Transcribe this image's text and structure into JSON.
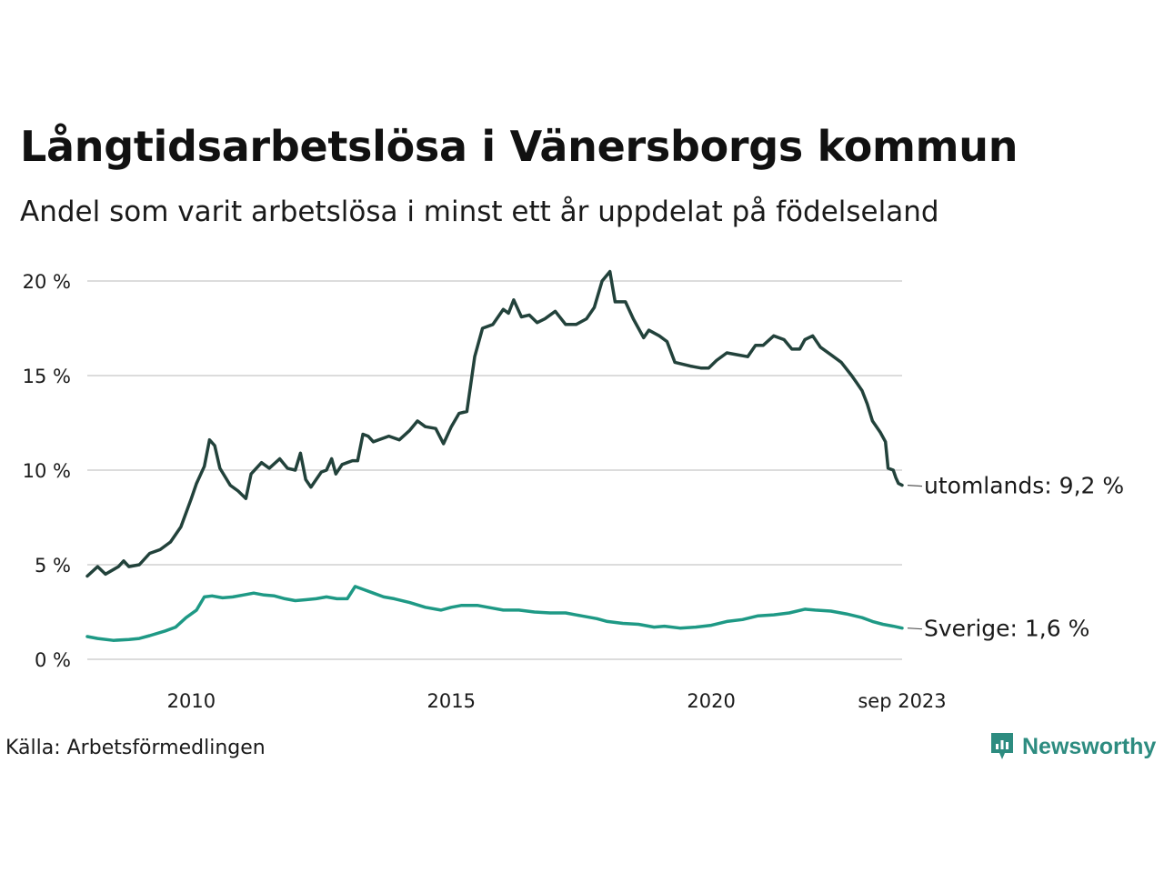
{
  "title": "Långtidsarbetslösa i Vänersborgs kommun",
  "subtitle": "Andel som varit arbetslösa i minst ett år uppdelat på födelseland",
  "source": "Källa: Arbetsförmedlingen",
  "brand": "Newsworthy",
  "colors": {
    "utomlands": "#22423b",
    "sverige": "#1e9985",
    "grid": "#dcdcdc",
    "brand": "#2d8c80"
  },
  "chart_data": {
    "type": "line",
    "title": "Långtidsarbetslösa i Vänersborgs kommun",
    "xlabel": "",
    "ylabel": "",
    "ylim": [
      0,
      20
    ],
    "xlim": [
      2008.0,
      2023.67
    ],
    "y_ticks": [
      0,
      5,
      10,
      15,
      20
    ],
    "y_tick_labels": [
      "0 %",
      "5 %",
      "10 %",
      "15 %",
      "20 %"
    ],
    "x_ticks": [
      2010,
      2015,
      2020,
      2023.67
    ],
    "x_tick_labels": [
      "2010",
      "2015",
      "2020",
      "sep 2023"
    ],
    "grid": true,
    "series": [
      {
        "name": "utomlands",
        "end_label": "utomlands: 9,2 %",
        "points": [
          [
            2008.0,
            4.4
          ],
          [
            2008.2,
            4.9
          ],
          [
            2008.35,
            4.5
          ],
          [
            2008.6,
            4.9
          ],
          [
            2008.7,
            5.2
          ],
          [
            2008.8,
            4.9
          ],
          [
            2009.0,
            5.0
          ],
          [
            2009.2,
            5.6
          ],
          [
            2009.4,
            5.8
          ],
          [
            2009.6,
            6.2
          ],
          [
            2009.8,
            7.0
          ],
          [
            2010.0,
            8.5
          ],
          [
            2010.1,
            9.3
          ],
          [
            2010.25,
            10.2
          ],
          [
            2010.35,
            11.6
          ],
          [
            2010.45,
            11.3
          ],
          [
            2010.55,
            10.1
          ],
          [
            2010.75,
            9.2
          ],
          [
            2010.9,
            8.9
          ],
          [
            2011.05,
            8.5
          ],
          [
            2011.15,
            9.8
          ],
          [
            2011.35,
            10.4
          ],
          [
            2011.5,
            10.1
          ],
          [
            2011.7,
            10.6
          ],
          [
            2011.85,
            10.1
          ],
          [
            2012.0,
            10.0
          ],
          [
            2012.1,
            10.9
          ],
          [
            2012.2,
            9.5
          ],
          [
            2012.3,
            9.1
          ],
          [
            2012.5,
            9.9
          ],
          [
            2012.6,
            10.0
          ],
          [
            2012.7,
            10.6
          ],
          [
            2012.78,
            9.8
          ],
          [
            2012.9,
            10.3
          ],
          [
            2013.1,
            10.5
          ],
          [
            2013.2,
            10.5
          ],
          [
            2013.3,
            11.9
          ],
          [
            2013.4,
            11.8
          ],
          [
            2013.5,
            11.5
          ],
          [
            2013.8,
            11.8
          ],
          [
            2014.0,
            11.6
          ],
          [
            2014.2,
            12.1
          ],
          [
            2014.35,
            12.6
          ],
          [
            2014.5,
            12.3
          ],
          [
            2014.7,
            12.2
          ],
          [
            2014.85,
            11.4
          ],
          [
            2015.0,
            12.3
          ],
          [
            2015.15,
            13.0
          ],
          [
            2015.3,
            13.1
          ],
          [
            2015.45,
            16.0
          ],
          [
            2015.6,
            17.5
          ],
          [
            2015.8,
            17.7
          ],
          [
            2016.0,
            18.5
          ],
          [
            2016.1,
            18.3
          ],
          [
            2016.2,
            19.0
          ],
          [
            2016.35,
            18.1
          ],
          [
            2016.5,
            18.2
          ],
          [
            2016.65,
            17.8
          ],
          [
            2016.8,
            18.0
          ],
          [
            2017.0,
            18.4
          ],
          [
            2017.2,
            17.7
          ],
          [
            2017.4,
            17.7
          ],
          [
            2017.6,
            18.0
          ],
          [
            2017.75,
            18.6
          ],
          [
            2017.9,
            20.0
          ],
          [
            2018.05,
            20.5
          ],
          [
            2018.15,
            18.9
          ],
          [
            2018.35,
            18.9
          ],
          [
            2018.5,
            18.0
          ],
          [
            2018.7,
            17.0
          ],
          [
            2018.8,
            17.4
          ],
          [
            2019.0,
            17.1
          ],
          [
            2019.15,
            16.8
          ],
          [
            2019.3,
            15.7
          ],
          [
            2019.6,
            15.5
          ],
          [
            2019.8,
            15.4
          ],
          [
            2019.95,
            15.4
          ],
          [
            2020.1,
            15.8
          ],
          [
            2020.3,
            16.2
          ],
          [
            2020.5,
            16.1
          ],
          [
            2020.7,
            16.0
          ],
          [
            2020.85,
            16.6
          ],
          [
            2021.0,
            16.6
          ],
          [
            2021.2,
            17.1
          ],
          [
            2021.4,
            16.9
          ],
          [
            2021.55,
            16.4
          ],
          [
            2021.7,
            16.4
          ],
          [
            2021.8,
            16.9
          ],
          [
            2021.95,
            17.1
          ],
          [
            2022.1,
            16.5
          ],
          [
            2022.3,
            16.1
          ],
          [
            2022.5,
            15.7
          ],
          [
            2022.7,
            15.0
          ],
          [
            2022.8,
            14.6
          ],
          [
            2022.9,
            14.2
          ],
          [
            2023.0,
            13.5
          ],
          [
            2023.1,
            12.6
          ],
          [
            2023.25,
            12.0
          ],
          [
            2023.35,
            11.5
          ],
          [
            2023.4,
            10.1
          ],
          [
            2023.5,
            10.0
          ],
          [
            2023.55,
            9.6
          ],
          [
            2023.6,
            9.3
          ],
          [
            2023.67,
            9.2
          ]
        ]
      },
      {
        "name": "Sverige",
        "end_label": "Sverige: 1,6 %",
        "points": [
          [
            2008.0,
            1.2
          ],
          [
            2008.2,
            1.1
          ],
          [
            2008.5,
            1.0
          ],
          [
            2008.8,
            1.05
          ],
          [
            2009.0,
            1.1
          ],
          [
            2009.2,
            1.25
          ],
          [
            2009.5,
            1.5
          ],
          [
            2009.7,
            1.7
          ],
          [
            2009.9,
            2.2
          ],
          [
            2010.1,
            2.6
          ],
          [
            2010.25,
            3.3
          ],
          [
            2010.4,
            3.35
          ],
          [
            2010.6,
            3.25
          ],
          [
            2010.8,
            3.3
          ],
          [
            2011.0,
            3.4
          ],
          [
            2011.2,
            3.5
          ],
          [
            2011.4,
            3.4
          ],
          [
            2011.6,
            3.35
          ],
          [
            2011.8,
            3.2
          ],
          [
            2012.0,
            3.1
          ],
          [
            2012.2,
            3.15
          ],
          [
            2012.4,
            3.2
          ],
          [
            2012.6,
            3.3
          ],
          [
            2012.8,
            3.2
          ],
          [
            2013.0,
            3.2
          ],
          [
            2013.15,
            3.85
          ],
          [
            2013.3,
            3.7
          ],
          [
            2013.5,
            3.5
          ],
          [
            2013.7,
            3.3
          ],
          [
            2013.9,
            3.2
          ],
          [
            2014.2,
            3.0
          ],
          [
            2014.5,
            2.75
          ],
          [
            2014.8,
            2.6
          ],
          [
            2015.0,
            2.75
          ],
          [
            2015.2,
            2.85
          ],
          [
            2015.5,
            2.85
          ],
          [
            2015.8,
            2.7
          ],
          [
            2016.0,
            2.6
          ],
          [
            2016.3,
            2.6
          ],
          [
            2016.6,
            2.5
          ],
          [
            2016.9,
            2.45
          ],
          [
            2017.2,
            2.45
          ],
          [
            2017.5,
            2.3
          ],
          [
            2017.8,
            2.15
          ],
          [
            2018.0,
            2.0
          ],
          [
            2018.3,
            1.9
          ],
          [
            2018.6,
            1.85
          ],
          [
            2018.9,
            1.7
          ],
          [
            2019.1,
            1.75
          ],
          [
            2019.4,
            1.65
          ],
          [
            2019.7,
            1.7
          ],
          [
            2020.0,
            1.8
          ],
          [
            2020.3,
            2.0
          ],
          [
            2020.6,
            2.1
          ],
          [
            2020.9,
            2.3
          ],
          [
            2021.2,
            2.35
          ],
          [
            2021.5,
            2.45
          ],
          [
            2021.8,
            2.65
          ],
          [
            2022.0,
            2.6
          ],
          [
            2022.3,
            2.55
          ],
          [
            2022.6,
            2.4
          ],
          [
            2022.9,
            2.2
          ],
          [
            2023.1,
            2.0
          ],
          [
            2023.3,
            1.85
          ],
          [
            2023.5,
            1.75
          ],
          [
            2023.67,
            1.65
          ]
        ]
      }
    ]
  }
}
